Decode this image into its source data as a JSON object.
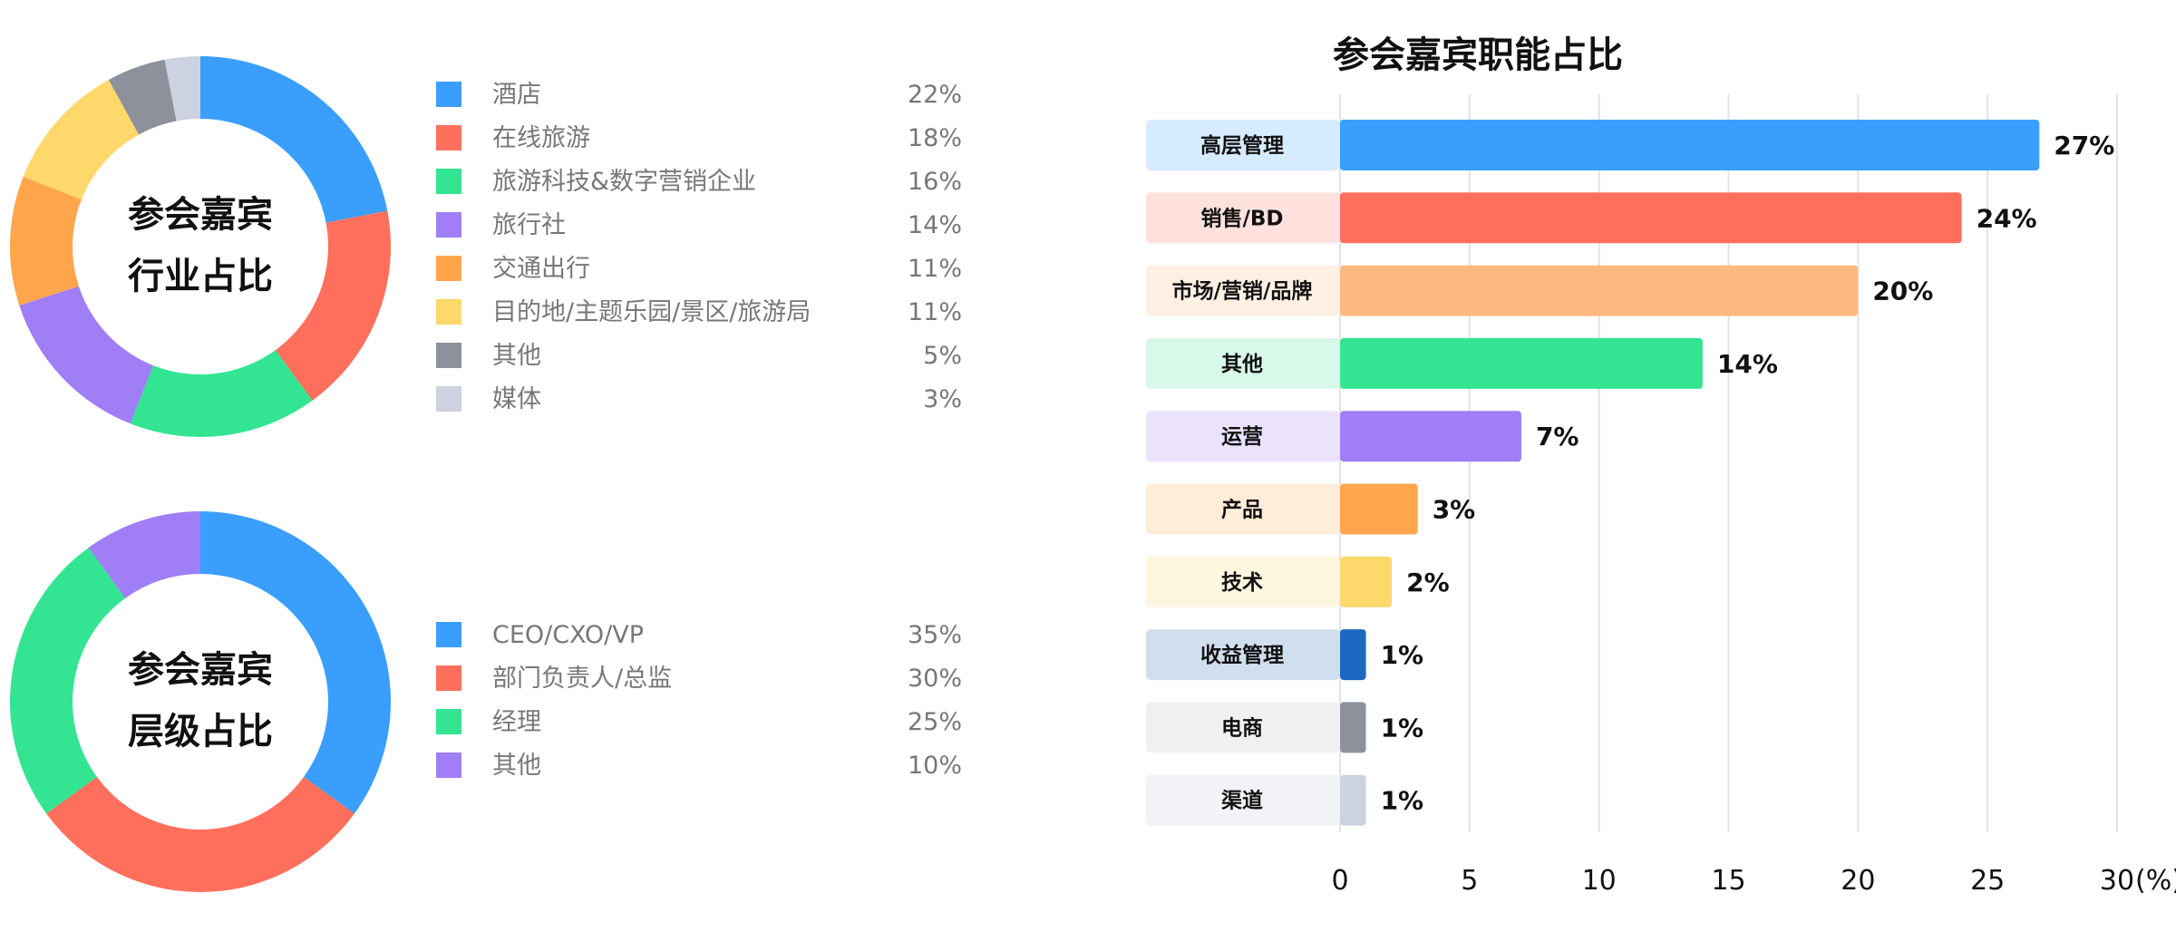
{
  "chart_data": [
    {
      "type": "pie",
      "title_lines": [
        "参会嘉宾",
        "行业占比"
      ],
      "categories": [
        "酒店",
        "在线旅游",
        "旅游科技&数字营销企业",
        "旅行社",
        "交通出行",
        "目的地/主题乐园/景区/旅游局",
        "其他",
        "媒体"
      ],
      "values": [
        22,
        18,
        16,
        14,
        11,
        11,
        5,
        3
      ],
      "labels": [
        "22%",
        "18%",
        "16%",
        "14%",
        "11%",
        "11%",
        "5%",
        "3%"
      ],
      "colors": [
        "#3a9efd",
        "#ff6f5c",
        "#33e592",
        "#a07ef5",
        "#ffa64d",
        "#ffd86b",
        "#8c919c",
        "#cdd2e1"
      ],
      "legend": "right"
    },
    {
      "type": "pie",
      "title_lines": [
        "参会嘉宾",
        "层级占比"
      ],
      "categories": [
        "CEO/CXO/VP",
        "部门负责人/总监",
        "经理",
        "其他"
      ],
      "values": [
        35,
        30,
        25,
        10
      ],
      "labels": [
        "35%",
        "30%",
        "25%",
        "10%"
      ],
      "colors": [
        "#3a9efd",
        "#ff6f5c",
        "#33e592",
        "#a07ef5"
      ],
      "legend": "right"
    },
    {
      "type": "bar",
      "orientation": "horizontal",
      "title": "参会嘉宾职能占比",
      "categories": [
        "高层管理",
        "销售/BD",
        "市场/营销/品牌",
        "其他",
        "运营",
        "产品",
        "技术",
        "收益管理",
        "电商",
        "渠道"
      ],
      "values": [
        27,
        24,
        20,
        14,
        7,
        3,
        2,
        1,
        1,
        1
      ],
      "value_labels": [
        "27%",
        "24%",
        "20%",
        "14%",
        "7%",
        "3%",
        "2%",
        "1%",
        "1%",
        "1%"
      ],
      "colors": [
        "#3a9efd",
        "#ff6f5c",
        "#ffb880",
        "#33e592",
        "#a07ef5",
        "#ffa64d",
        "#ffd86b",
        "#1d67c0",
        "#8c919c",
        "#cdd2e1"
      ],
      "label_bg_colors": [
        "#d6ebfe",
        "#ffe2de",
        "#fff0e3",
        "#d8f8e9",
        "#ebe3fc",
        "#ffedd9",
        "#fff6e0",
        "#d0deed",
        "#eef0f2",
        "#f1f3f7"
      ],
      "xlim": [
        0,
        30
      ],
      "xticks": [
        "0",
        "5",
        "10",
        "15",
        "20",
        "25",
        "30"
      ],
      "xunit": "(%)",
      "grid": true
    }
  ]
}
